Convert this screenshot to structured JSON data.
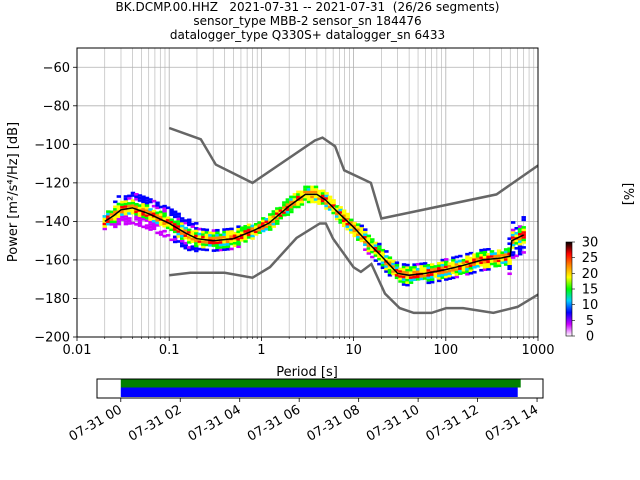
{
  "chart_data": {
    "type": "heatmap",
    "title_lines": [
      "BK.DCMP.00.HHZ   2021-07-31 -- 2021-07-31  (26/26 segments)",
      "sensor_type MBB-2 sensor_sn 184476",
      "datalogger_type Q330S+ datalogger_sn 6433"
    ],
    "xlabel": "Period [s]",
    "ylabel": "Power [m²/s⁴/Hz] [dB]",
    "x_scale": "log",
    "xlim": [
      0.01,
      1000
    ],
    "ylim": [
      -200,
      -50
    ],
    "x_tick_labels": [
      "0.01",
      "0.1",
      "1",
      "10",
      "100",
      "1000"
    ],
    "y_ticks": [
      -60,
      -80,
      -100,
      -120,
      -140,
      -160,
      -180,
      -200
    ],
    "grid": true,
    "colorbar": {
      "label": "[%]",
      "range": [
        0,
        30
      ],
      "ticks": [
        0,
        5,
        10,
        15,
        20,
        25,
        30
      ],
      "colors": [
        "#ffffff",
        "#cc00ff",
        "#0000ff",
        "#00d0ff",
        "#00ff00",
        "#ffff00",
        "#ff8800",
        "#ff0000",
        "#000000"
      ]
    },
    "noise_models": [
      {
        "name": "NHNM",
        "color": "#666666",
        "points": [
          [
            0.1,
            -91.5
          ],
          [
            0.22,
            -97.4
          ],
          [
            0.32,
            -110.5
          ],
          [
            0.8,
            -120.0
          ],
          [
            3.8,
            -98.0
          ],
          [
            4.6,
            -96.5
          ],
          [
            6.3,
            -101.0
          ],
          [
            7.9,
            -113.5
          ],
          [
            15.4,
            -120.0
          ],
          [
            20,
            -138.5
          ],
          [
            354.8,
            -126.0
          ],
          [
            1000,
            -111.0
          ]
        ]
      },
      {
        "name": "NLNM",
        "color": "#666666",
        "points": [
          [
            0.1,
            -168.0
          ],
          [
            0.17,
            -166.7
          ],
          [
            0.4,
            -166.7
          ],
          [
            0.8,
            -169.2
          ],
          [
            1.24,
            -163.7
          ],
          [
            2.4,
            -148.6
          ],
          [
            4.3,
            -141.1
          ],
          [
            5.0,
            -141.1
          ],
          [
            6.0,
            -149.0
          ],
          [
            10.0,
            -163.8
          ],
          [
            12.0,
            -166.2
          ],
          [
            15.6,
            -162.1
          ],
          [
            21.9,
            -177.5
          ],
          [
            31.6,
            -185.0
          ],
          [
            45,
            -187.5
          ],
          [
            70,
            -187.5
          ],
          [
            101,
            -185.0
          ],
          [
            154,
            -185.0
          ],
          [
            328,
            -187.5
          ],
          [
            600,
            -184.4
          ],
          [
            1000,
            -178.0
          ]
        ]
      }
    ],
    "mode_curve": {
      "color": "#000000",
      "points": [
        [
          0.02,
          -140
        ],
        [
          0.025,
          -137
        ],
        [
          0.03,
          -134
        ],
        [
          0.04,
          -133
        ],
        [
          0.06,
          -136
        ],
        [
          0.1,
          -141
        ],
        [
          0.15,
          -146
        ],
        [
          0.2,
          -149
        ],
        [
          0.3,
          -150
        ],
        [
          0.5,
          -149
        ],
        [
          0.8,
          -145
        ],
        [
          1.2,
          -141
        ],
        [
          2.0,
          -132
        ],
        [
          3.0,
          -126
        ],
        [
          4.0,
          -126
        ],
        [
          5.0,
          -129
        ],
        [
          7.0,
          -136
        ],
        [
          10.0,
          -143
        ],
        [
          15.0,
          -152
        ],
        [
          20.0,
          -158
        ],
        [
          30.0,
          -167
        ],
        [
          40.0,
          -168
        ],
        [
          60.0,
          -167
        ],
        [
          100.0,
          -165
        ],
        [
          150.0,
          -163
        ],
        [
          250.0,
          -160
        ],
        [
          400.0,
          -159
        ],
        [
          500.0,
          -158
        ],
        [
          520,
          -150
        ],
        [
          700,
          -147
        ]
      ]
    },
    "time_axis": {
      "tick_labels": [
        "07-31 00",
        "07-31 02",
        "07-31 04",
        "07-31 06",
        "07-31 08",
        "07-31 10",
        "07-31 12",
        "07-31 14"
      ],
      "range_hours": [
        -0.8,
        14.2
      ],
      "coverage_green_hours": [
        0,
        13.45
      ],
      "coverage_blue_hours": [
        0,
        13.35
      ],
      "colors": {
        "green": "#008000",
        "blue": "#0000ff"
      }
    }
  }
}
